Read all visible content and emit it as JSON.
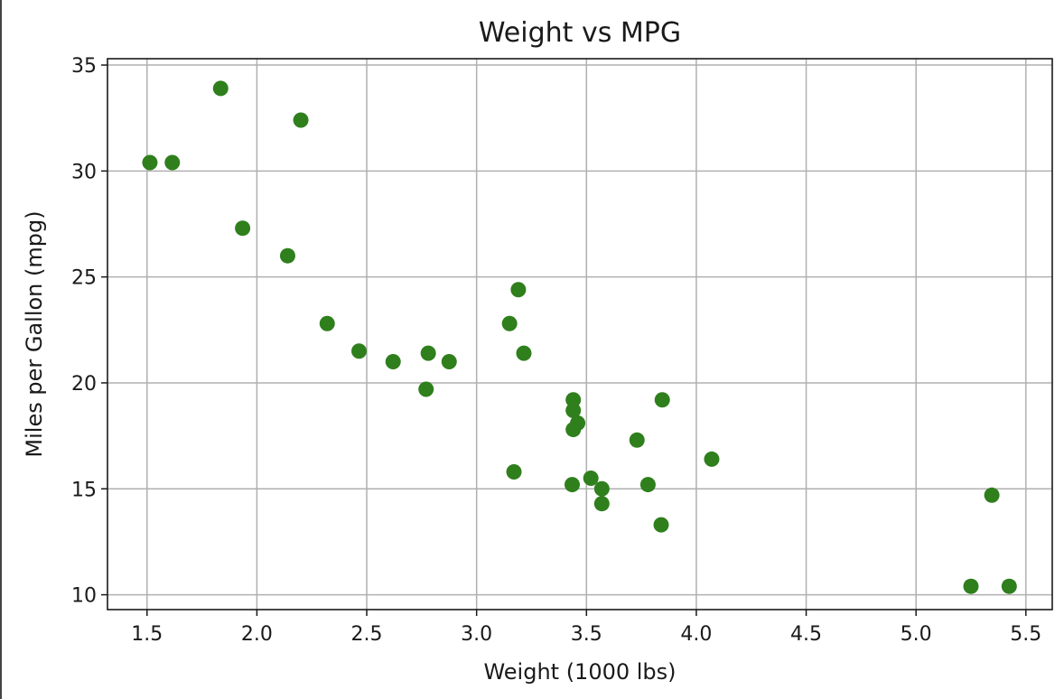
{
  "chart_data": {
    "type": "scatter",
    "title": "Weight vs MPG",
    "xlabel": "Weight (1000 lbs)",
    "ylabel": "Miles per Gallon (mpg)",
    "xlim": [
      1.32,
      5.62
    ],
    "ylim": [
      9.3,
      35.3
    ],
    "xticks": [
      1.5,
      2.0,
      2.5,
      3.0,
      3.5,
      4.0,
      4.5,
      5.0,
      5.5
    ],
    "xtick_labels": [
      "1.5",
      "2.0",
      "2.5",
      "3.0",
      "3.5",
      "4.0",
      "4.5",
      "5.0",
      "5.5"
    ],
    "yticks": [
      10,
      15,
      20,
      25,
      30,
      35
    ],
    "ytick_labels": [
      "10",
      "15",
      "20",
      "25",
      "30",
      "35"
    ],
    "grid": true,
    "marker_color": "#2f7f1d",
    "series": [
      {
        "points": [
          [
            2.62,
            21.0
          ],
          [
            2.875,
            21.0
          ],
          [
            2.32,
            22.8
          ],
          [
            3.215,
            21.4
          ],
          [
            3.44,
            18.7
          ],
          [
            3.46,
            18.1
          ],
          [
            3.57,
            14.3
          ],
          [
            3.19,
            24.4
          ],
          [
            3.15,
            22.8
          ],
          [
            3.44,
            19.2
          ],
          [
            3.44,
            17.8
          ],
          [
            4.07,
            16.4
          ],
          [
            3.73,
            17.3
          ],
          [
            3.78,
            15.2
          ],
          [
            5.25,
            10.4
          ],
          [
            5.424,
            10.4
          ],
          [
            5.345,
            14.7
          ],
          [
            2.2,
            32.4
          ],
          [
            1.615,
            30.4
          ],
          [
            1.835,
            33.9
          ],
          [
            2.465,
            21.5
          ],
          [
            3.52,
            15.5
          ],
          [
            3.435,
            15.2
          ],
          [
            3.84,
            13.3
          ],
          [
            3.845,
            19.2
          ],
          [
            1.935,
            27.3
          ],
          [
            2.14,
            26.0
          ],
          [
            1.513,
            30.4
          ],
          [
            3.17,
            15.8
          ],
          [
            2.77,
            19.7
          ],
          [
            3.57,
            15.0
          ],
          [
            2.78,
            21.4
          ]
        ]
      }
    ]
  }
}
